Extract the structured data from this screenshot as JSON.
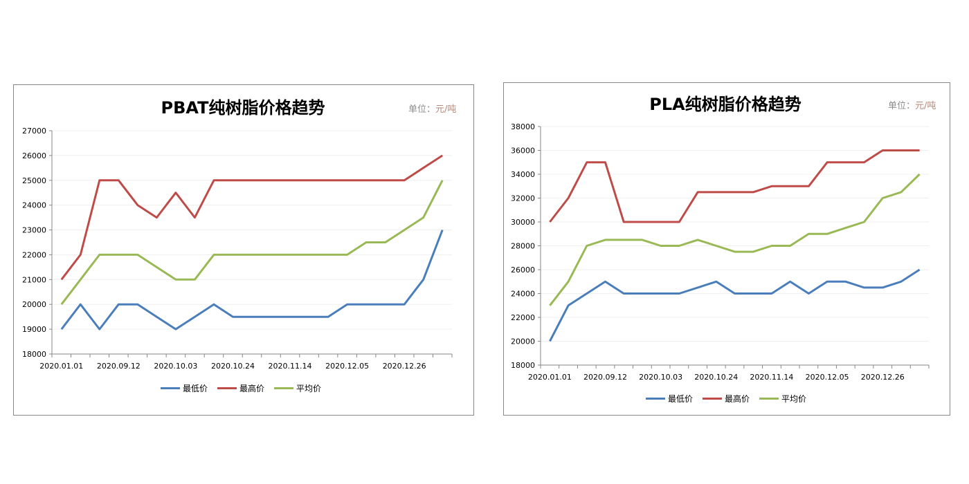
{
  "chart_data": [
    {
      "type": "line",
      "title": "PBAT纯树脂价格趋势",
      "unit_label": "单位：",
      "unit_value": "元/吨",
      "ylim": [
        18000,
        27000
      ],
      "ytick_step": 1000,
      "grid": true,
      "legend": "bottom",
      "x_tick_labels": [
        "2020.01.01",
        "",
        "",
        "2020.09.12",
        "",
        "",
        "2020.10.03",
        "",
        "",
        "2020.10.24",
        "",
        "",
        "2020.11.14",
        "",
        "",
        "2020.12.05",
        "",
        "",
        "2020.12.26",
        "",
        ""
      ],
      "series": [
        {
          "name": "最低价",
          "color": "#4a7ebb",
          "values": [
            19000,
            20000,
            19000,
            20000,
            20000,
            19500,
            19000,
            19500,
            20000,
            19500,
            19500,
            19500,
            19500,
            19500,
            19500,
            20000,
            20000,
            20000,
            20000,
            21000,
            23000
          ]
        },
        {
          "name": "最高价",
          "color": "#be4b48",
          "values": [
            21000,
            22000,
            25000,
            25000,
            24000,
            23500,
            24500,
            23500,
            25000,
            25000,
            25000,
            25000,
            25000,
            25000,
            25000,
            25000,
            25000,
            25000,
            25000,
            25500,
            26000
          ]
        },
        {
          "name": "平均价",
          "color": "#98b954",
          "values": [
            20000,
            21000,
            22000,
            22000,
            22000,
            21500,
            21000,
            21000,
            22000,
            22000,
            22000,
            22000,
            22000,
            22000,
            22000,
            22000,
            22500,
            22500,
            23000,
            23500,
            25000
          ]
        }
      ]
    },
    {
      "type": "line",
      "title": "PLA纯树脂价格趋势",
      "unit_label": "单位：",
      "unit_value": "元/吨",
      "ylim": [
        18000,
        38000
      ],
      "ytick_step": 2000,
      "grid": true,
      "legend": "bottom",
      "x_tick_labels": [
        "2020.01.01",
        "",
        "",
        "2020.09.12",
        "",
        "",
        "2020.10.03",
        "",
        "",
        "2020.10.24",
        "",
        "",
        "2020.11.14",
        "",
        "",
        "2020.12.05",
        "",
        "",
        "2020.12.26",
        "",
        ""
      ],
      "series": [
        {
          "name": "最低价",
          "color": "#4a7ebb",
          "values": [
            20000,
            23000,
            24000,
            25000,
            24000,
            24000,
            24000,
            24000,
            24500,
            25000,
            24000,
            24000,
            24000,
            25000,
            24000,
            25000,
            25000,
            24500,
            24500,
            25000,
            26000
          ]
        },
        {
          "name": "最高价",
          "color": "#be4b48",
          "values": [
            30000,
            32000,
            35000,
            35000,
            30000,
            30000,
            30000,
            30000,
            32500,
            32500,
            32500,
            32500,
            33000,
            33000,
            33000,
            35000,
            35000,
            35000,
            36000,
            36000,
            36000
          ]
        },
        {
          "name": "平均价",
          "color": "#98b954",
          "values": [
            23000,
            25000,
            28000,
            28500,
            28500,
            28500,
            28000,
            28000,
            28500,
            28000,
            27500,
            27500,
            28000,
            28000,
            29000,
            29000,
            29500,
            30000,
            32000,
            32500,
            34000
          ]
        }
      ]
    }
  ]
}
